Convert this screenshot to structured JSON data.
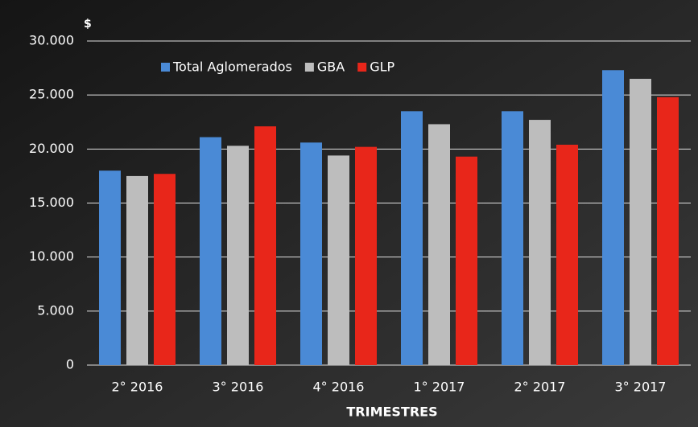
{
  "chart_data": {
    "type": "bar",
    "y_label": "$",
    "x_label": "TRIMESTRES",
    "categories": [
      "2° 2016",
      "3° 2016",
      "4° 2016",
      "1° 2017",
      "2° 2017",
      "3° 2017"
    ],
    "series": [
      {
        "name": "Total Aglomerados",
        "color": "#4a8ad6",
        "values": [
          18000,
          21100,
          20600,
          23500,
          23500,
          27300
        ]
      },
      {
        "name": "GBA",
        "color": "#bdbdbd",
        "values": [
          17500,
          20300,
          19400,
          22300,
          22700,
          26500
        ]
      },
      {
        "name": "GLP",
        "color": "#e8261a",
        "values": [
          17700,
          22100,
          20200,
          19300,
          20400,
          24800
        ]
      }
    ],
    "ylim": [
      0,
      30000
    ],
    "yticks": [
      0,
      {
        "value": 5000,
        "label": "5.000"
      },
      {
        "value": 10000,
        "label": "10.000"
      },
      {
        "value": 15000,
        "label": "15.000"
      },
      {
        "value": 20000,
        "label": "20.000"
      },
      {
        "value": 25000,
        "label": "25.000"
      },
      {
        "value": 30000,
        "label": "30.000"
      }
    ],
    "grid": true,
    "legend": "top"
  }
}
